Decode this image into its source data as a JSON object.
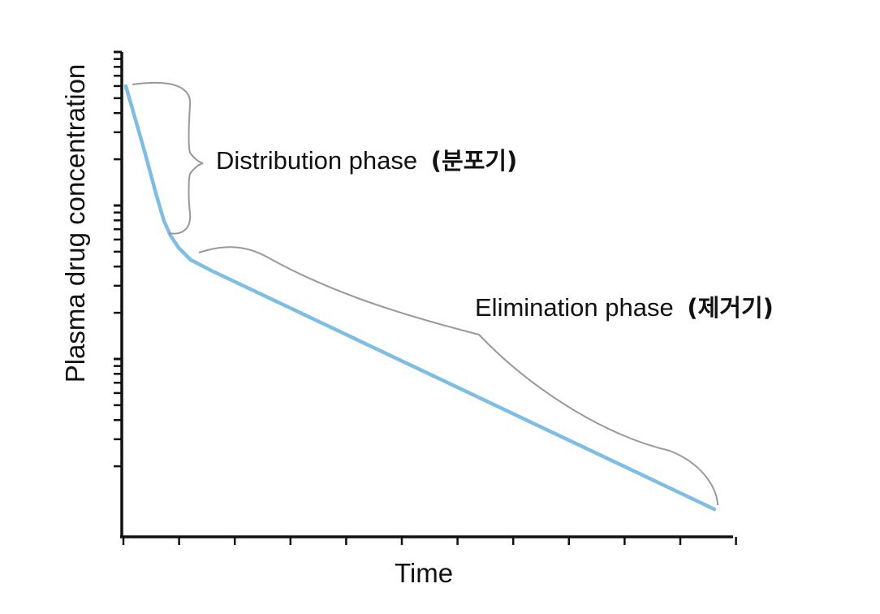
{
  "chart_data": {
    "type": "line",
    "title": "",
    "xlabel": "Time",
    "ylabel": "Plasma drug concentration",
    "yscale": "log",
    "x_ticks_labeled": false,
    "y_ticks_labeled": false,
    "grid": false,
    "legend": "none",
    "series": [
      {
        "color": "#7fbde3",
        "shape": "biexponential decay",
        "phases": [
          "distribution",
          "elimination"
        ]
      }
    ],
    "annotations": [
      {
        "phase": "distribution",
        "text": "Distribution phase",
        "text_ko": "(분포기)"
      },
      {
        "phase": "elimination",
        "text": "Elimination phase",
        "text_ko": "(제거기)"
      }
    ],
    "colors": {
      "axis": "#111111",
      "curve": "#7fbde3",
      "bracket": "#999999"
    }
  }
}
